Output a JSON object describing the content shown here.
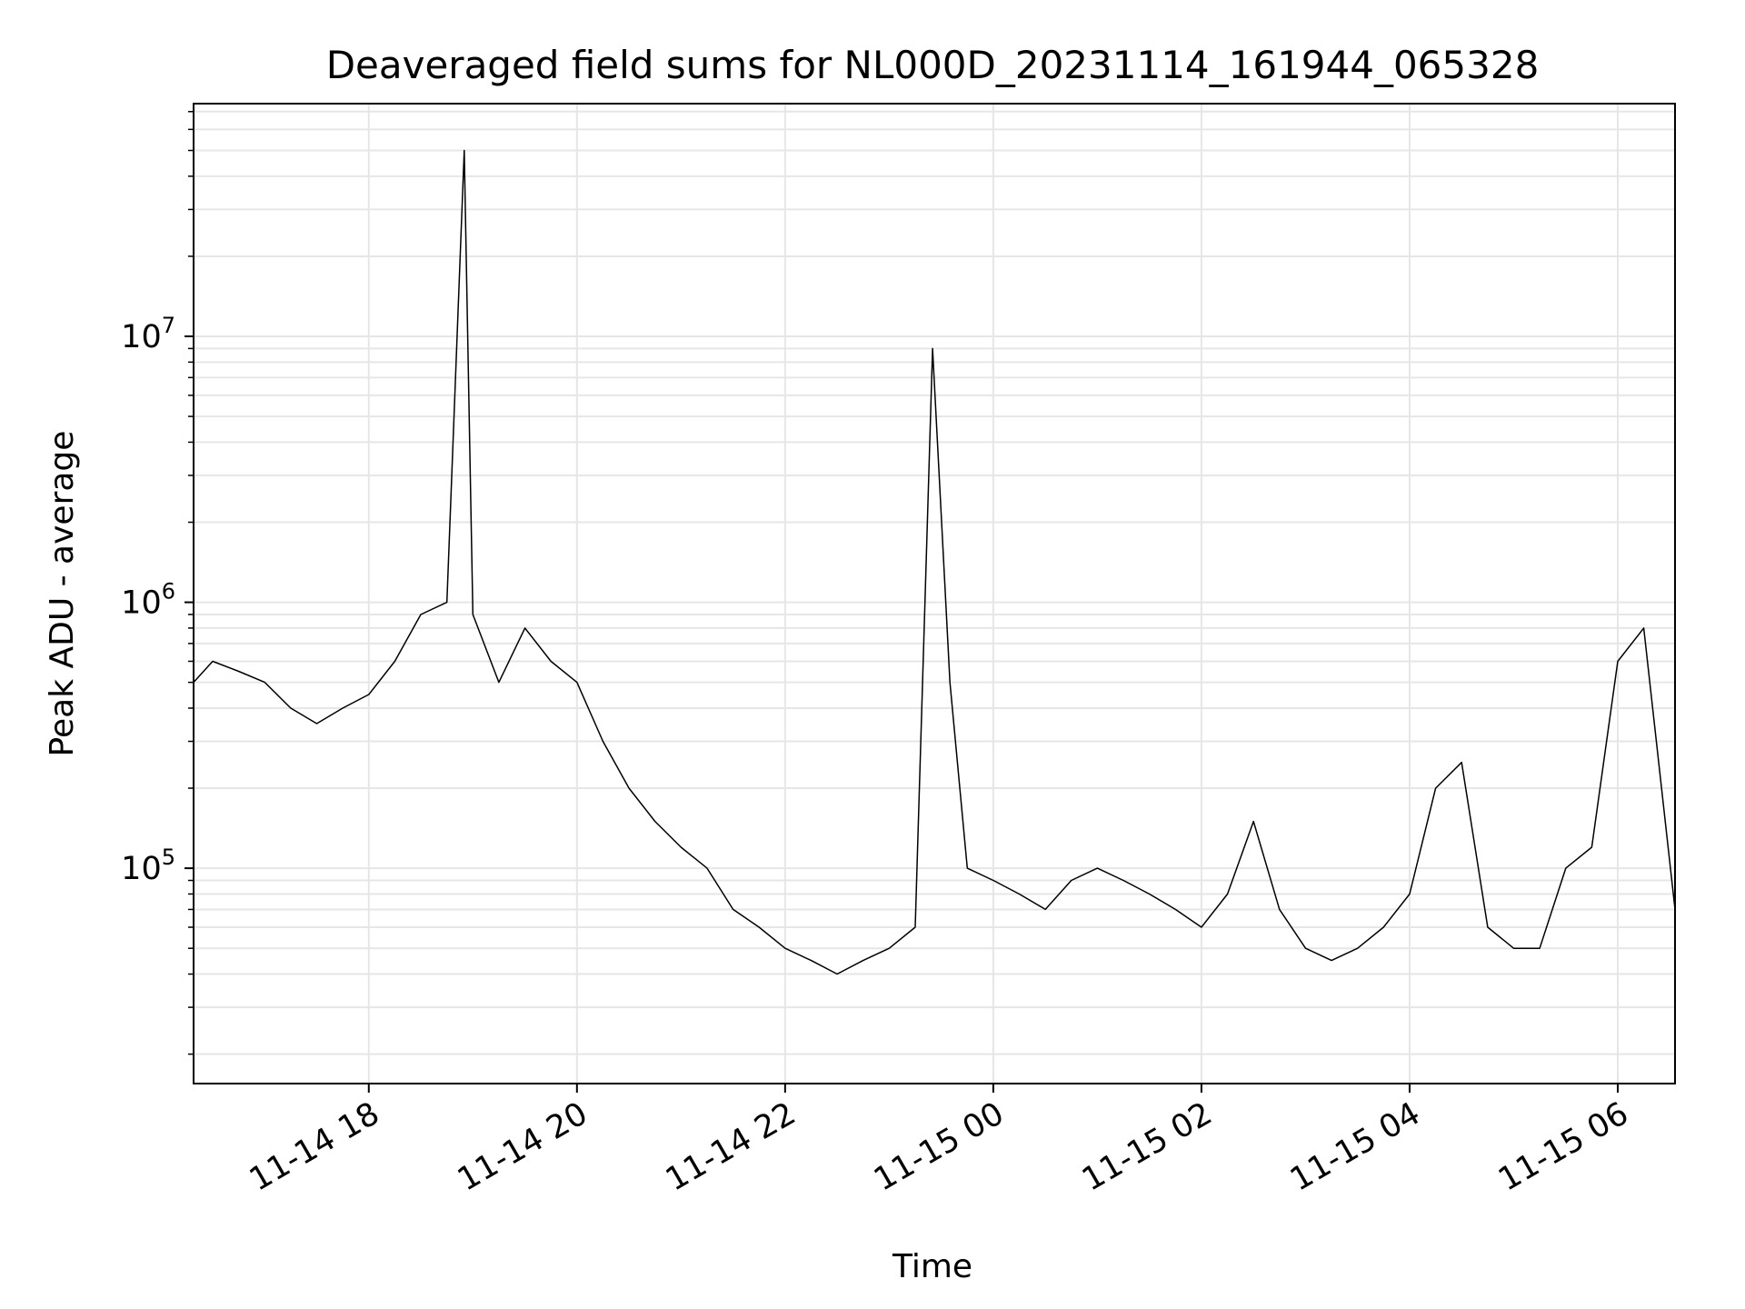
{
  "chart_data": {
    "type": "line",
    "title": "Deaveraged field sums for NL000D_20231114_161944_065328",
    "xlabel": "Time",
    "ylabel": "Peak ADU - average",
    "yscale": "log",
    "grid": true,
    "grid_color": "#e6e6e6",
    "line_color": "#000000",
    "xlim": [
      "2023-11-14 16:19",
      "2023-11-15 06:33"
    ],
    "ylim": [
      15500,
      75000000
    ],
    "x_ticks": [
      {
        "label": "11-14 18",
        "time": "2023-11-14 18:00"
      },
      {
        "label": "11-14 20",
        "time": "2023-11-14 20:00"
      },
      {
        "label": "11-14 22",
        "time": "2023-11-14 22:00"
      },
      {
        "label": "11-15 00",
        "time": "2023-11-15 00:00"
      },
      {
        "label": "11-15 02",
        "time": "2023-11-15 02:00"
      },
      {
        "label": "11-15 04",
        "time": "2023-11-15 04:00"
      },
      {
        "label": "11-15 06",
        "time": "2023-11-15 06:00"
      }
    ],
    "y_ticks": [
      {
        "base": "10",
        "exp": "5",
        "value": 100000
      },
      {
        "base": "10",
        "exp": "6",
        "value": 1000000
      },
      {
        "base": "10",
        "exp": "7",
        "value": 10000000
      }
    ],
    "series": [
      {
        "x": [
          "2023-11-14 16:19",
          "2023-11-14 16:30",
          "2023-11-14 16:45",
          "2023-11-14 17:00",
          "2023-11-14 17:15",
          "2023-11-14 17:30",
          "2023-11-14 17:45",
          "2023-11-14 18:00",
          "2023-11-14 18:15",
          "2023-11-14 18:30",
          "2023-11-14 18:45",
          "2023-11-14 18:55",
          "2023-11-14 19:00",
          "2023-11-14 19:15",
          "2023-11-14 19:30",
          "2023-11-14 19:45",
          "2023-11-14 20:00",
          "2023-11-14 20:15",
          "2023-11-14 20:30",
          "2023-11-14 20:45",
          "2023-11-14 21:00",
          "2023-11-14 21:15",
          "2023-11-14 21:30",
          "2023-11-14 21:45",
          "2023-11-14 22:00",
          "2023-11-14 22:15",
          "2023-11-14 22:30",
          "2023-11-14 22:45",
          "2023-11-14 23:00",
          "2023-11-14 23:15",
          "2023-11-14 23:25",
          "2023-11-14 23:35",
          "2023-11-14 23:45",
          "2023-11-15 00:00",
          "2023-11-15 00:15",
          "2023-11-15 00:30",
          "2023-11-15 00:45",
          "2023-11-15 01:00",
          "2023-11-15 01:15",
          "2023-11-15 01:30",
          "2023-11-15 01:45",
          "2023-11-15 02:00",
          "2023-11-15 02:15",
          "2023-11-15 02:30",
          "2023-11-15 02:45",
          "2023-11-15 03:00",
          "2023-11-15 03:15",
          "2023-11-15 03:30",
          "2023-11-15 03:45",
          "2023-11-15 04:00",
          "2023-11-15 04:15",
          "2023-11-15 04:30",
          "2023-11-15 04:45",
          "2023-11-15 05:00",
          "2023-11-15 05:15",
          "2023-11-15 05:30",
          "2023-11-15 05:45",
          "2023-11-15 06:00",
          "2023-11-15 06:15",
          "2023-11-15 06:33"
        ],
        "y": [
          500000,
          600000,
          550000,
          500000,
          400000,
          350000,
          400000,
          450000,
          600000,
          900000,
          1000000,
          50000000,
          900000,
          500000,
          800000,
          600000,
          500000,
          300000,
          200000,
          150000,
          120000,
          100000,
          70000,
          60000,
          50000,
          45000,
          40000,
          45000,
          50000,
          60000,
          9000000,
          500000,
          100000,
          90000,
          80000,
          70000,
          90000,
          100000,
          90000,
          80000,
          70000,
          60000,
          80000,
          150000,
          70000,
          50000,
          45000,
          50000,
          60000,
          80000,
          200000,
          250000,
          60000,
          50000,
          50000,
          100000,
          120000,
          600000,
          800000,
          70000
        ]
      }
    ]
  }
}
